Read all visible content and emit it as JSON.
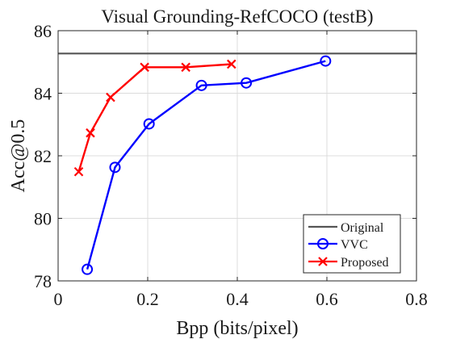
{
  "chart_data": {
    "type": "line",
    "title": "Visual Grounding-RefCOCO (testB)",
    "xlabel": "Bpp (bits/pixel)",
    "ylabel": "Acc@0.5",
    "xlim": [
      0,
      0.8
    ],
    "ylim": [
      78,
      86
    ],
    "xticks": [
      0,
      0.2,
      0.4,
      0.6,
      0.8
    ],
    "xtick_labels": [
      "0",
      "0.2",
      "0.4",
      "0.6",
      "0.8"
    ],
    "yticks": [
      78,
      80,
      82,
      84,
      86
    ],
    "ytick_labels": [
      "78",
      "80",
      "82",
      "84",
      "86"
    ],
    "grid": true,
    "legend_position": "bottom-right",
    "series": [
      {
        "name": "Original",
        "kind": "reference-line",
        "color": "#555555",
        "y": 85.27
      },
      {
        "name": "VVC",
        "color": "#0000ff",
        "marker": "circle",
        "x": [
          0.065,
          0.127,
          0.203,
          0.32,
          0.42,
          0.597
        ],
        "y": [
          78.37,
          81.63,
          83.02,
          84.25,
          84.33,
          85.03
        ]
      },
      {
        "name": "Proposed",
        "color": "#ff0000",
        "marker": "x",
        "x": [
          0.046,
          0.072,
          0.117,
          0.193,
          0.285,
          0.387
        ],
        "y": [
          81.49,
          82.73,
          83.87,
          84.83,
          84.83,
          84.93
        ]
      }
    ]
  }
}
